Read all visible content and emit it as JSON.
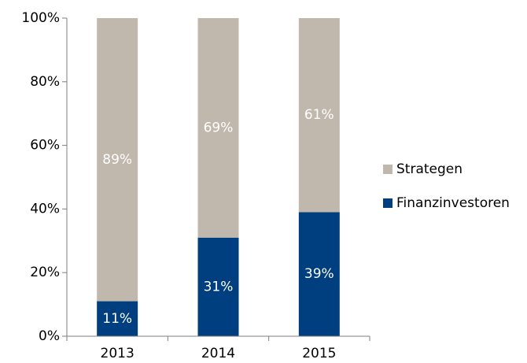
{
  "chart_data": {
    "type": "stacked_bar",
    "categories": [
      "2013",
      "2014",
      "2015"
    ],
    "series": [
      {
        "name": "Finanzinvestoren",
        "color": "#003f7f",
        "values": [
          11,
          31,
          39
        ],
        "value_labels": [
          "11%",
          "31%",
          "39%"
        ]
      },
      {
        "name": "Strategen",
        "color": "#c0b8ad",
        "values": [
          89,
          69,
          61
        ],
        "value_labels": [
          "89%",
          "69%",
          "61%"
        ]
      }
    ],
    "ylim": [
      0,
      100
    ],
    "yticks": [
      {
        "value": 0,
        "label": "0%"
      },
      {
        "value": 20,
        "label": "20%"
      },
      {
        "value": 40,
        "label": "40%"
      },
      {
        "value": 60,
        "label": "60%"
      },
      {
        "value": 80,
        "label": "80%"
      },
      {
        "value": 100,
        "label": "100%"
      }
    ],
    "legend": "right"
  }
}
